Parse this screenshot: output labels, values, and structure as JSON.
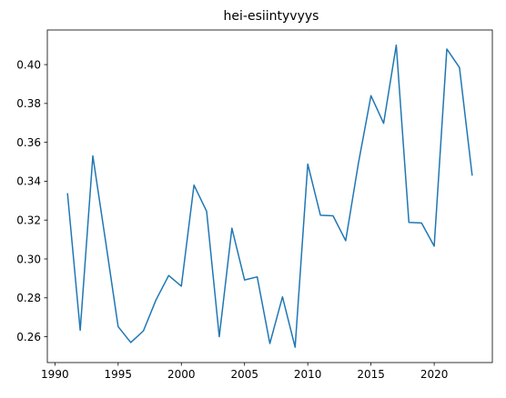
{
  "chart_data": {
    "type": "line",
    "title": "hei-esiintyvyys",
    "xlabel": "",
    "ylabel": "",
    "grid": false,
    "legend": "none",
    "xlim": [
      1989.4,
      2024.6
    ],
    "ylim": [
      0.2467,
      0.4178
    ],
    "xticks": [
      1990,
      1995,
      2000,
      2005,
      2010,
      2015,
      2020
    ],
    "yticks": [
      0.26,
      0.28,
      0.3,
      0.32,
      0.34,
      0.36,
      0.38,
      0.4
    ],
    "ytick_labels": [
      "0.26",
      "0.28",
      "0.30",
      "0.32",
      "0.34",
      "0.36",
      "0.38",
      "0.40"
    ],
    "series": [
      {
        "color": "#1f77b4",
        "x": [
          1991,
          1992,
          1993,
          1994,
          1995,
          1996,
          1997,
          1998,
          1999,
          2000,
          2001,
          2002,
          2003,
          2004,
          2005,
          2006,
          2007,
          2008,
          2009,
          2010,
          2011,
          2012,
          2013,
          2014,
          2015,
          2016,
          2017,
          2018,
          2019,
          2020,
          2021,
          2022,
          2023
        ],
        "y": [
          0.3335,
          0.2633,
          0.353,
          0.3095,
          0.2652,
          0.257,
          0.263,
          0.279,
          0.2915,
          0.286,
          0.338,
          0.3245,
          0.26,
          0.3158,
          0.2892,
          0.2908,
          0.2565,
          0.2805,
          0.2546,
          0.3488,
          0.3225,
          0.3222,
          0.3094,
          0.349,
          0.384,
          0.3698,
          0.41,
          0.3188,
          0.3185,
          0.3066,
          0.408,
          0.3985,
          0.3432
        ]
      }
    ]
  }
}
